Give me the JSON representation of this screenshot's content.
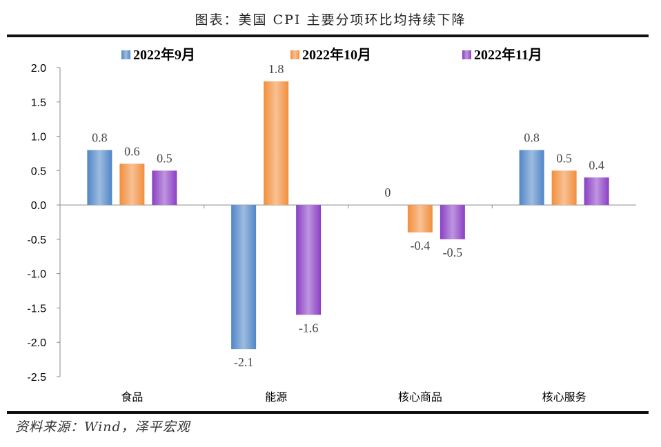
{
  "title": "图表：美国 CPI 主要分项环比均持续下降",
  "source": "资料来源：Wind，泽平宏观",
  "chart_data": {
    "type": "bar",
    "categories": [
      "食品",
      "能源",
      "核心商品",
      "核心服务"
    ],
    "series": [
      {
        "name": "2022年9月",
        "values": [
          0.8,
          -2.1,
          0,
          0.8
        ],
        "labels": [
          "0.8",
          "-2.1",
          "0",
          "0.8"
        ],
        "color": "#4f86c6"
      },
      {
        "name": "2022年10月",
        "values": [
          0.6,
          1.8,
          -0.4,
          0.5
        ],
        "labels": [
          "0.6",
          "1.8",
          "-0.4",
          "0.5"
        ],
        "color": "#f28e3c"
      },
      {
        "name": "2022年11月",
        "values": [
          0.5,
          -1.6,
          -0.5,
          0.4
        ],
        "labels": [
          "0.5",
          "-1.6",
          "-0.5",
          "0.4"
        ],
        "color": "#8a3fc4"
      }
    ],
    "ylim": [
      -2.5,
      2.0
    ],
    "yticks": [
      "2.0",
      "1.5",
      "1.0",
      "0.5",
      "0.0",
      "-0.5",
      "-1.0",
      "-1.5",
      "-2.0",
      "-2.5"
    ],
    "legend_position": "top"
  }
}
